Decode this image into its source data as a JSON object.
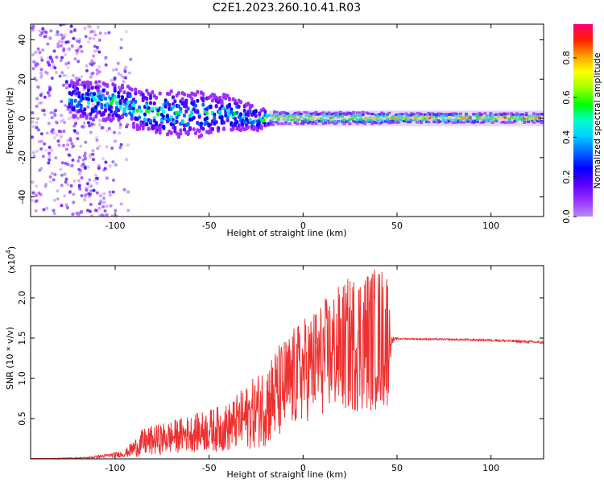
{
  "title": "C2E1.2023.260.10.41.R03",
  "chart_data": [
    {
      "type": "heatmap",
      "xlabel": "Height of straight line (km)",
      "ylabel": "Frequency (Hz)",
      "xlim": [
        -145,
        128
      ],
      "ylim": [
        -50,
        48
      ],
      "xticks": [
        -100,
        -50,
        0,
        50,
        100
      ],
      "yticks": [
        -40,
        -20,
        0,
        20,
        40
      ],
      "colorbar": {
        "label": "Normalized spectral amplitude",
        "range": [
          0,
          0.97
        ],
        "ticks": [
          0.0,
          0.2,
          0.4,
          0.6,
          0.8
        ],
        "colors": [
          "#b88af0",
          "#9b30ff",
          "#5a00ff",
          "#0000ff",
          "#0066ff",
          "#00d0ff",
          "#00ffc8",
          "#00ff00",
          "#9cff00",
          "#ffff00",
          "#ffa000",
          "#ff2000",
          "#ff0070"
        ]
      },
      "ridge": [
        {
          "x": -120,
          "f": 10,
          "amp": 0.45,
          "spread": 9
        },
        {
          "x": -100,
          "f": 8,
          "amp": 0.5,
          "spread": 10
        },
        {
          "x": -80,
          "f": 3,
          "amp": 0.5,
          "spread": 11
        },
        {
          "x": -60,
          "f": 2,
          "amp": 0.45,
          "spread": 12
        },
        {
          "x": -40,
          "f": 3,
          "amp": 0.45,
          "spread": 9
        },
        {
          "x": -25,
          "f": 0,
          "amp": 0.5,
          "spread": 6
        },
        {
          "x": -15,
          "f": 0,
          "amp": 0.85,
          "spread": 3
        },
        {
          "x": 0,
          "f": 0,
          "amp": 0.85,
          "spread": 3
        },
        {
          "x": 40,
          "f": 0,
          "amp": 0.85,
          "spread": 3
        },
        {
          "x": 50,
          "f": 0,
          "amp": 0.9,
          "spread": 2.5
        },
        {
          "x": 128,
          "f": 0,
          "amp": 0.9,
          "spread": 2.5
        }
      ]
    },
    {
      "type": "line",
      "xlabel": "Height of straight line (km)",
      "ylabel": "SNR (10 * v/v)",
      "yscale_label": "(x10",
      "yscale_exp": "4",
      "xlim": [
        -145,
        128
      ],
      "ylim": [
        0,
        2.4
      ],
      "xticks": [
        -100,
        -50,
        0,
        50,
        100
      ],
      "yticks": [
        0.5,
        1.0,
        1.5,
        2.0
      ],
      "color": "#ee3030",
      "envelope": [
        {
          "x": -145,
          "base": 0.0,
          "amp": 0.0
        },
        {
          "x": -115,
          "base": 0.01,
          "amp": 0.02
        },
        {
          "x": -95,
          "base": 0.05,
          "amp": 0.08
        },
        {
          "x": -85,
          "base": 0.15,
          "amp": 0.35
        },
        {
          "x": -60,
          "base": 0.25,
          "amp": 0.45
        },
        {
          "x": -40,
          "base": 0.3,
          "amp": 0.6
        },
        {
          "x": -25,
          "base": 0.45,
          "amp": 0.9
        },
        {
          "x": -15,
          "base": 0.6,
          "amp": 1.2
        },
        {
          "x": 0,
          "base": 0.9,
          "amp": 1.3
        },
        {
          "x": 15,
          "base": 1.1,
          "amp": 1.5
        },
        {
          "x": 30,
          "base": 1.2,
          "amp": 1.8
        },
        {
          "x": 45,
          "base": 1.25,
          "amp": 1.8
        },
        {
          "x": 47,
          "base": 1.45,
          "amp": 0.1
        },
        {
          "x": 50,
          "base": 1.49,
          "amp": 0.02
        },
        {
          "x": 100,
          "base": 1.47,
          "amp": 0.03
        },
        {
          "x": 128,
          "base": 1.44,
          "amp": 0.04
        }
      ]
    }
  ]
}
